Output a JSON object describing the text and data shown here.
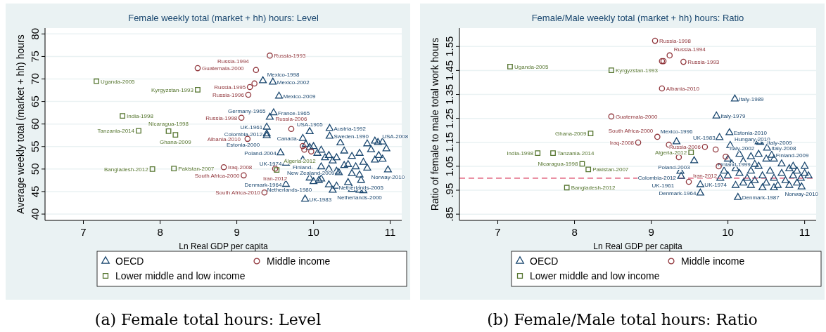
{
  "chart_data": [
    {
      "type": "scatter",
      "title": "Female weekly total (market + hh) hours: Level",
      "xlabel": "Ln Real GDP per capita",
      "ylabel": "Average weekly total (market + hh) hours",
      "xlim": [
        6.5,
        11.15
      ],
      "xticks": [
        7,
        8,
        9,
        10,
        11
      ],
      "ylim": [
        38.6,
        81.3
      ],
      "yticks": [
        40,
        45,
        50,
        55,
        60,
        65,
        70,
        75,
        80
      ],
      "grid": "y",
      "legend": "bottom",
      "annotations": [
        "(a) Female total hours: Level"
      ],
      "series": [
        {
          "name": "OECD",
          "color": "#1a476f",
          "marker": "triangle",
          "x": [
            9.34,
            9.47,
            9.55,
            9.48,
            9.43,
            9.39,
            9.39,
            9.39,
            9.95,
            10.21,
            10.21,
            9.86,
            9.57,
            9.86,
            9.64,
            9.64,
            9.89,
            10.97,
            10.33,
            10.62,
            10.6,
            10.07,
            10.84,
            9.9,
            9.95,
            10.0,
            10.05,
            10.1,
            10.15,
            10.2,
            10.25,
            10.3,
            10.35,
            10.4,
            10.45,
            10.5,
            10.55,
            10.6,
            10.65,
            10.7,
            10.75,
            10.8,
            10.85,
            10.9,
            10.95,
            10.1,
            10.2,
            10.3,
            10.4,
            10.5,
            10.6,
            10.7,
            10.8,
            9.95,
            10.0,
            10.1,
            10.2,
            10.3,
            10.5,
            10.65,
            10.25,
            10.45,
            10.9
          ],
          "values": [
            69.6,
            69.3,
            66.2,
            62.5,
            61.5,
            59.3,
            57.8,
            57.4,
            58.3,
            59.0,
            57.3,
            56.8,
            53.6,
            52.0,
            51.3,
            46.6,
            43.3,
            49.8,
            49.2,
            47.5,
            45.3,
            47.5,
            55.9,
            55.5,
            54.8,
            55.0,
            53.5,
            54.2,
            52.5,
            53.0,
            51.8,
            52.5,
            55.8,
            54.0,
            51.0,
            52.8,
            50.5,
            53.5,
            51.5,
            55.6,
            54.3,
            56.2,
            53.0,
            56.0,
            54.5,
            50.5,
            50.0,
            49.5,
            50.8,
            49.0,
            48.7,
            50.2,
            52.0,
            48.0,
            47.2,
            47.8,
            46.5,
            46.2,
            45.5,
            45.2,
            45.3,
            47.0,
            52.2
          ],
          "value_labels": [
            "Mexico-1998",
            "Mexico-2002",
            "Mexico-2009",
            "France-1965",
            "Germany-1965",
            "UK-1961",
            "Colombia-2012",
            "Estonia-2000",
            "USA-1965",
            "Austria-1992",
            "Sweden-1990",
            "Canada-",
            "Poland-2004",
            "Finland-",
            "UK-1974",
            "Denmark-1964",
            "UK-1983",
            "Norway-2010",
            "New Zealand-2009",
            "Netherlands-2005",
            "Netherlands-2000",
            "Netherlands-1980",
            "USA-2008",
            null,
            null,
            null,
            null,
            null,
            null,
            null,
            null,
            null,
            null,
            null,
            null,
            null,
            null,
            null,
            null,
            null,
            null,
            null,
            null,
            null,
            null,
            null,
            null,
            null,
            null,
            null,
            null,
            null,
            null,
            null,
            null,
            null,
            null,
            null,
            null,
            null,
            null,
            null,
            null
          ]
        },
        {
          "name": "Middle income",
          "color": "#90353b",
          "marker": "circle",
          "x": [
            8.49,
            9.43,
            9.25,
            9.23,
            9.17,
            9.15,
            9.06,
            9.71,
            9.14,
            8.83,
            9.09,
            9.36,
            9.5,
            9.86,
            9.88,
            9.97
          ],
          "values": [
            72.4,
            75.2,
            72.0,
            69.0,
            68.2,
            66.5,
            61.4,
            58.9,
            56.7,
            50.4,
            48.6,
            44.8,
            50.1,
            55.1,
            54.3,
            53.9
          ],
          "value_labels": [
            "Guatemala-2000",
            "Russia-1993",
            "Russia-1994",
            null,
            "Russia-1995",
            "Russia-1996",
            "Russia-1998",
            "Russia-2006",
            "Albania-2010",
            "Iraq-2008",
            "South Africa-2000",
            "South Africa-2010",
            "Iran-2012",
            null,
            null,
            null
          ]
        },
        {
          "name": "Lower middle and low income",
          "color": "#55752f",
          "marker": "square",
          "x": [
            7.17,
            7.51,
            7.72,
            8.11,
            8.2,
            7.9,
            8.18,
            8.49,
            9.52
          ],
          "values": [
            69.5,
            61.8,
            58.5,
            58.4,
            57.6,
            50.0,
            50.1,
            67.6,
            49.8
          ],
          "value_labels": [
            "Uganda-2005",
            "India-1998",
            "Tanzania-2014",
            "Nicaragua-1998",
            "Ghana-2009",
            "Bangladesh-2012",
            "Pakistan-2007",
            "Kyrgyzstan-1993",
            "Algeria-2012"
          ]
        }
      ]
    },
    {
      "type": "scatter",
      "title": "Female/Male weekly total (market + hh) hours: Ratio",
      "xlabel": "Ln Real GDP per capita",
      "ylabel": "Ratio of female to male total work hours",
      "xlim": [
        6.5,
        11.15
      ],
      "xticks": [
        7,
        8,
        9,
        10,
        11
      ],
      "ylim": [
        0.824,
        1.627
      ],
      "yticks": [
        {
          "value": 0.85,
          "label": ".85"
        },
        {
          "value": 0.95,
          "label": ".95"
        },
        1.05,
        1.15,
        1.25,
        1.35,
        1.45,
        1.55
      ],
      "grid": "y",
      "legend": "bottom",
      "annotations": [
        "(b) Female/Male total hours: Ratio"
      ],
      "ref_lines": [
        {
          "axis": "y",
          "value": 1,
          "color": "#d9395a",
          "line_style": "dashed"
        }
      ],
      "series": [
        {
          "name": "OECD",
          "color": "#1a476f",
          "marker": "triangle",
          "x": [
            10.09,
            9.85,
            10.02,
            9.89,
            10.03,
            9.33,
            10.51,
            10.57,
            9.56,
            10.35,
            9.38,
            9.39,
            9.64,
            9.64,
            10.13,
            10.4,
            10.42,
            10.96,
            10.0,
            10.05,
            10.1,
            10.15,
            10.2,
            10.25,
            10.3,
            10.35,
            10.4,
            10.45,
            10.5,
            10.55,
            10.6,
            10.65,
            10.7,
            10.75,
            10.8,
            10.85,
            10.9,
            10.95,
            11.0,
            11.05,
            10.3,
            10.45,
            10.6,
            10.8,
            9.95,
            10.1,
            10.2,
            10.85,
            10.7,
            10.5,
            10.3,
            10.15,
            9.9,
            10.0,
            11.0,
            10.9,
            10.6,
            10.4
          ],
          "values": [
            1.331,
            1.26,
            1.19,
            1.17,
            1.137,
            1.152,
            1.126,
            1.096,
            1.073,
            1.058,
            1.029,
            1.008,
            0.973,
            0.938,
            0.92,
            1.152,
            1.15,
            0.964,
            1.08,
            1.06,
            1.04,
            1.02,
            1.07,
            1.0,
            1.03,
            0.99,
            1.05,
            1.01,
            0.98,
            1.03,
            1.0,
            0.97,
            1.02,
            0.99,
            1.04,
            1.01,
            1.03,
            1.0,
            1.02,
            1.01,
            0.97,
            0.96,
            0.96,
            0.97,
            1.03,
            0.97,
            0.98,
            1.05,
            1.06,
            1.08,
            1.09,
            1.1,
            1.0,
            1.01,
            1.05,
            0.98,
            1.08,
            1.1
          ],
          "value_labels": [
            "Italy-1989",
            "Italy-1979",
            "Estonia-2010",
            "UK-1983",
            "Hungary-2010",
            "Mexico-1996",
            "Italy-2008",
            "Finland-2009",
            "Poland-2003",
            "Finland-1999",
            "Colombia-2012",
            "UK-1961",
            "UK-1974",
            "Denmark-1964",
            "Denmark-1987",
            "Italy-2002",
            "Italy-2009",
            "Norway-2010",
            null,
            null,
            null,
            null,
            null,
            null,
            null,
            null,
            null,
            null,
            null,
            null,
            null,
            null,
            null,
            null,
            null,
            null,
            null,
            null,
            null,
            null,
            null,
            null,
            null,
            null,
            null,
            null,
            null,
            null,
            null,
            null,
            null,
            null,
            null,
            null,
            null,
            null,
            null,
            null
          ]
        },
        {
          "name": "Middle income",
          "color": "#90353b",
          "marker": "circle",
          "x": [
            8.48,
            9.05,
            9.24,
            9.14,
            9.16,
            9.42,
            9.14,
            9.08,
            8.83,
            9.23,
            9.7,
            9.84,
            9.36,
            9.97,
            9.88,
            9.49
          ],
          "values": [
            1.258,
            1.574,
            1.513,
            1.489,
            1.489,
            1.486,
            1.375,
            1.173,
            1.149,
            1.14,
            1.131,
            1.12,
            1.088,
            1.09,
            1.05,
            0.985
          ],
          "value_labels": [
            "Guatemala-2000",
            "Russia-1998",
            "Russia-1994",
            null,
            null,
            "Russia-1993",
            "Albania-2010",
            "South Africa-2000",
            "Iraq-2008",
            null,
            "Russia-2006",
            null,
            null,
            null,
            null,
            "Iran-2012"
          ]
        },
        {
          "name": "Lower middle and low income",
          "color": "#55752f",
          "marker": "square",
          "x": [
            7.16,
            8.48,
            8.21,
            7.52,
            7.72,
            8.1,
            8.18,
            7.9,
            9.52
          ],
          "values": [
            1.466,
            1.451,
            1.187,
            1.105,
            1.105,
            1.06,
            1.037,
            0.961,
            1.108
          ],
          "value_labels": [
            "Uganda-2005",
            "Kyrgyzstan-1993",
            "Ghana-2009",
            "India-1998",
            "Tanzania-2014",
            "Nicaragua-1998",
            "Pakistan-2007",
            "Bangladesh-2012",
            "Algeria-2012"
          ]
        }
      ]
    }
  ]
}
